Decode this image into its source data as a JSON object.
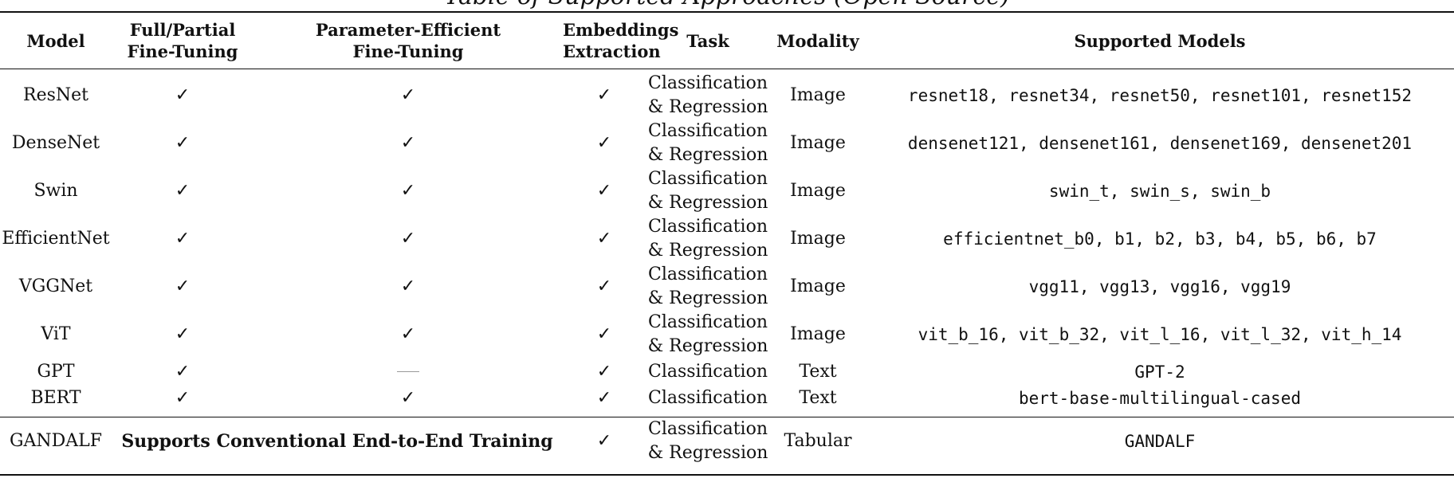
{
  "caption_fragment": "Table of Supported Approaches (Open Source)",
  "headers": {
    "model": "Model",
    "full_partial": [
      "Full/Partial",
      "Fine-Tuning"
    ],
    "peft": [
      "Parameter-Efficient",
      "Fine-Tuning"
    ],
    "embeddings": [
      "Embeddings",
      "Extraction"
    ],
    "task": "Task",
    "modality": "Modality",
    "supported_models": "Supported Models"
  },
  "symbols": {
    "check": "✓"
  },
  "rows": [
    {
      "model": "ResNet",
      "full": "✓",
      "peft": "✓",
      "emb": "✓",
      "task": [
        "Classification",
        "& Regression"
      ],
      "modality": "Image",
      "supported": "resnet18, resnet34, resnet50, resnet101, resnet152"
    },
    {
      "model": "DenseNet",
      "full": "✓",
      "peft": "✓",
      "emb": "✓",
      "task": [
        "Classification",
        "& Regression"
      ],
      "modality": "Image",
      "supported": "densenet121, densenet161, densenet169, densenet201"
    },
    {
      "model": "Swin",
      "full": "✓",
      "peft": "✓",
      "emb": "✓",
      "task": [
        "Classification",
        "& Regression"
      ],
      "modality": "Image",
      "supported": "swin_t, swin_s, swin_b"
    },
    {
      "model": "EfficientNet",
      "full": "✓",
      "peft": "✓",
      "emb": "✓",
      "task": [
        "Classification",
        "& Regression"
      ],
      "modality": "Image",
      "supported": "efficientnet_b0, b1, b2, b3, b4, b5, b6, b7"
    },
    {
      "model": "VGGNet",
      "full": "✓",
      "peft": "✓",
      "emb": "✓",
      "task": [
        "Classification",
        "& Regression"
      ],
      "modality": "Image",
      "supported": "vgg11, vgg13, vgg16, vgg19"
    },
    {
      "model": "ViT",
      "full": "✓",
      "peft": "✓",
      "emb": "✓",
      "task": [
        "Classification",
        "& Regression"
      ],
      "modality": "Image",
      "supported": "vit_b_16, vit_b_32, vit_l_16, vit_l_32, vit_h_14"
    },
    {
      "model": "GPT",
      "full": "✓",
      "peft": null,
      "emb": "✓",
      "task": [
        "Classification"
      ],
      "modality": "Text",
      "supported": "GPT-2"
    },
    {
      "model": "BERT",
      "full": "✓",
      "peft": "✓",
      "emb": "✓",
      "task": [
        "Classification"
      ],
      "modality": "Text",
      "supported": "bert-base-multilingual-cased"
    }
  ],
  "gandalf_row": {
    "model": "GANDALF",
    "training_note": "Supports Conventional End-to-End Training",
    "emb": "✓",
    "task": [
      "Classification",
      "& Regression"
    ],
    "modality": "Tabular",
    "supported": "GANDALF"
  }
}
